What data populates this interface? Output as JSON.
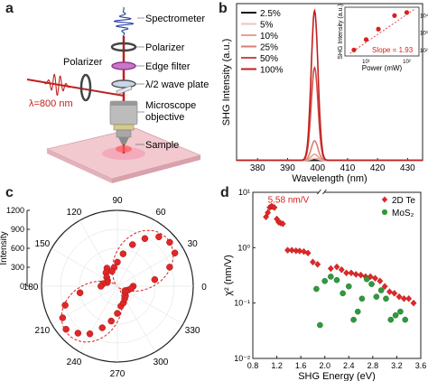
{
  "panels": {
    "a": {
      "letter": "a",
      "labels": {
        "spectrometer": "Spectrometer",
        "polarizer_top": "Polarizer",
        "edge_filter": "Edge filter",
        "waveplate": "λ/2 wave plate",
        "objective_1": "Microscope",
        "objective_2": "objective",
        "sample": "Sample",
        "polarizer_side": "Polarizer",
        "wavelength": "λ=800 nm"
      }
    },
    "b": {
      "letter": "b",
      "xlabel": "Wavelength (nm)",
      "ylabel": "SHG Intensity (a.u.)",
      "inset": {
        "xlabel": "Power (mW)",
        "ylabel": "SHG Intensity (a.u.)",
        "slope_label": "Slope = 1.93",
        "xtick_labels": [
          "10¹",
          "10²"
        ],
        "ytick_labels": [
          "10²",
          "10³",
          "10⁴"
        ]
      }
    },
    "c": {
      "letter": "c",
      "rlabel": "Intensity",
      "r_tick_labels": [
        "0",
        "300",
        "600",
        "900",
        "1200"
      ],
      "angle_labels": [
        "0",
        "30",
        "60",
        "90",
        "120",
        "150",
        "180",
        "210",
        "240",
        "270",
        "300",
        "330"
      ]
    },
    "d": {
      "letter": "d",
      "xlabel": "SHG Energy (eV)",
      "ylabel": "χ² (nm/V)",
      "annotation": "5.58 nm/V",
      "legend_te": "2D Te",
      "legend_mos2": "MoS₂",
      "ytick_labels": [
        "10¹",
        "10⁰",
        "10⁻¹",
        "10⁻²"
      ]
    }
  },
  "colors": {
    "red": "#d92020",
    "green": "#2e9a3c",
    "laser": "#c0201f",
    "blue_signal": "#2a3fa0"
  },
  "chart_data": [
    {
      "type": "line",
      "panel": "b",
      "xlim": [
        373,
        435
      ],
      "ylim": [
        0,
        1.05
      ],
      "xticks": [
        380,
        390,
        400,
        410,
        420,
        430
      ],
      "peak_center": 399,
      "series": [
        {
          "name": "2.5%",
          "color": "#111111",
          "peak": 0.004
        },
        {
          "name": "5%",
          "color": "#f2c2b8",
          "peak": 0.012
        },
        {
          "name": "10%",
          "color": "#e8a195",
          "peak": 0.04
        },
        {
          "name": "25%",
          "color": "#dc7e72",
          "peak": 0.13
        },
        {
          "name": "50%",
          "color": "#cf4b45",
          "peak": 0.62
        },
        {
          "name": "100%",
          "color": "#c41e1e",
          "peak": 1.0
        }
      ]
    },
    {
      "type": "scatter",
      "panel": "b-inset",
      "x_scale": "log",
      "y_scale": "log",
      "xlim": [
        3,
        200
      ],
      "ylim": [
        50,
        30000
      ],
      "x": [
        5,
        10,
        20,
        50,
        100
      ],
      "y": [
        110,
        430,
        1700,
        10000,
        15000
      ]
    },
    {
      "type": "scatter",
      "panel": "c",
      "projection": "polar",
      "rlim": [
        0,
        1200
      ],
      "theta_deg": [
        0,
        10,
        20,
        30,
        40,
        50,
        60,
        70,
        80,
        90,
        100,
        110,
        120,
        130,
        140,
        150,
        160,
        170,
        180,
        190,
        200,
        210,
        220,
        230,
        240,
        250,
        260,
        270,
        280,
        290,
        300,
        310,
        320,
        330,
        340,
        350
      ],
      "r": [
        250,
        600,
        880,
        1050,
        1080,
        1020,
        870,
        700,
        520,
        380,
        300,
        250,
        330,
        280,
        220,
        180,
        170,
        230,
        260,
        600,
        880,
        1000,
        1060,
        970,
        870,
        700,
        560,
        430,
        320,
        280,
        230,
        200,
        160,
        140,
        180,
        220
      ]
    },
    {
      "type": "scatter",
      "panel": "d",
      "y_scale": "log",
      "xlim": [
        0.8,
        3.6
      ],
      "ylim": [
        0.01,
        10
      ],
      "xticks": [
        0.8,
        1.2,
        1.6,
        2.0,
        2.4,
        2.8,
        3.2,
        3.6
      ],
      "axis_break_at": 1.95,
      "series": [
        {
          "name": "2D Te",
          "x": [
            1.02,
            1.05,
            1.08,
            1.11,
            1.13,
            1.16,
            1.2,
            1.23,
            1.26,
            1.3,
            1.38,
            1.45,
            1.52,
            1.58,
            1.65,
            1.72,
            1.8,
            1.88,
            2.1,
            2.2,
            2.28,
            2.36,
            2.44,
            2.52,
            2.6,
            2.68,
            2.76,
            2.84,
            2.92,
            3.0,
            3.08,
            3.16,
            3.24,
            3.32,
            3.4,
            3.48
          ],
          "y": [
            3.6,
            4.3,
            5.3,
            5.58,
            5.5,
            5.3,
            3.3,
            2.9,
            2.8,
            2.7,
            0.9,
            0.9,
            0.88,
            0.87,
            0.85,
            0.8,
            0.55,
            0.5,
            0.42,
            0.45,
            0.4,
            0.35,
            0.35,
            0.33,
            0.32,
            0.3,
            0.3,
            0.28,
            0.25,
            0.2,
            0.16,
            0.15,
            0.13,
            0.12,
            0.12,
            0.1
          ]
        },
        {
          "name": "MoS₂",
          "x": [
            1.86,
            1.92,
            2.0,
            2.1,
            2.2,
            2.3,
            2.4,
            2.48,
            2.55,
            2.62,
            2.7,
            2.78,
            2.86,
            2.94,
            3.02,
            3.1,
            3.18,
            3.26,
            3.34
          ],
          "y": [
            0.18,
            0.04,
            0.25,
            0.3,
            0.26,
            0.15,
            0.2,
            0.05,
            0.07,
            0.12,
            0.27,
            0.22,
            0.13,
            0.17,
            0.12,
            0.05,
            0.06,
            0.07,
            0.05
          ]
        }
      ]
    }
  ]
}
